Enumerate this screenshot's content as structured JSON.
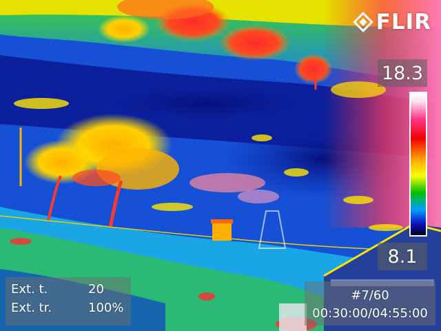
{
  "overlay": {
    "logo": "FLIR",
    "temp_max": "18.3",
    "temp_min": "8.1",
    "params": [
      {
        "label": "Ext. t.",
        "value": "20"
      },
      {
        "label": "Ext. tr.",
        "value": "100%"
      }
    ],
    "sequence": {
      "counter": "#7/60",
      "time": "00:30:00/04:55:00"
    }
  },
  "palette": {
    "cold": "#0a1b8c",
    "cool": "#1a6ee8",
    "mid": "#32d24a",
    "warm": "#ffe600",
    "hot": "#ff2020",
    "hottest": "#ff5fa8"
  }
}
